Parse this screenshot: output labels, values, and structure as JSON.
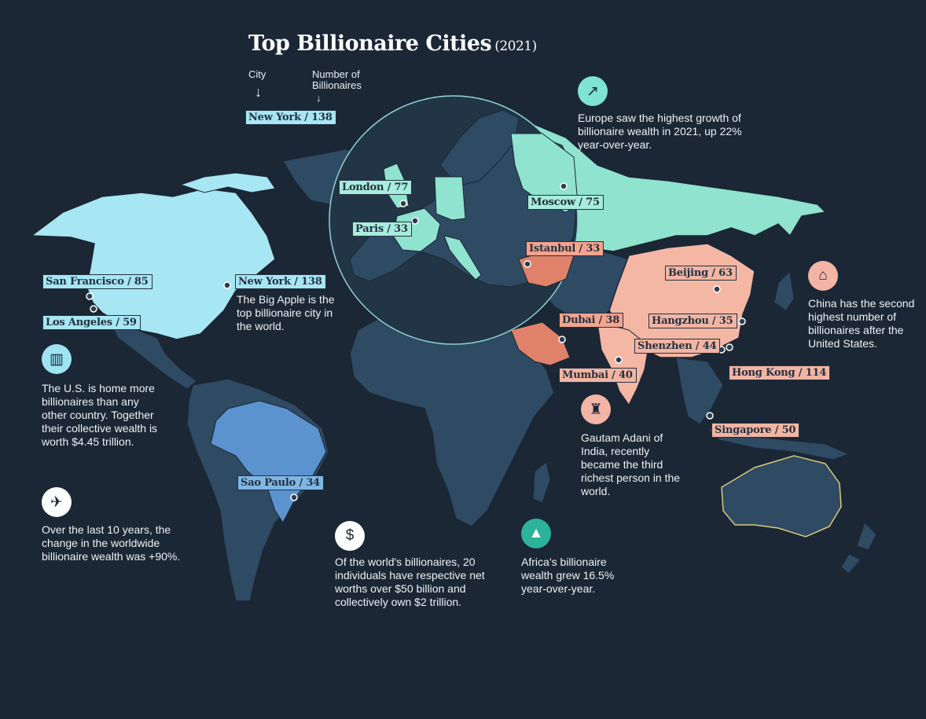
{
  "title": "Top Billionaire Cities",
  "title_year": "(2021)",
  "key": {
    "city_label": "City",
    "count_label": "Number of Billionaires",
    "example": "New York / 138"
  },
  "colors": {
    "background": "#1b2735",
    "land": "#2f4a63",
    "north_america": "#a7e6f3",
    "south_brazil": "#5b93cf",
    "europe_russia": "#8fe3cf",
    "china": "#f4b7a4",
    "turkey_saudi": "#e0826a"
  },
  "cities": [
    {
      "name": "San Francisco / 85",
      "color": "blue"
    },
    {
      "name": "New York / 138",
      "color": "blue"
    },
    {
      "name": "Los Angeles / 59",
      "color": "blue"
    },
    {
      "name": "London / 77",
      "color": "mint"
    },
    {
      "name": "Paris / 33",
      "color": "mint"
    },
    {
      "name": "Moscow / 75",
      "color": "mint"
    },
    {
      "name": "Istanbul / 33",
      "color": "orange"
    },
    {
      "name": "Beijing / 63",
      "color": "salmon"
    },
    {
      "name": "Dubai / 38",
      "color": "orange"
    },
    {
      "name": "Hangzhou / 35",
      "color": "salmon"
    },
    {
      "name": "Shenzhen / 44",
      "color": "salmon"
    },
    {
      "name": "Hong Kong / 114",
      "color": "salmon"
    },
    {
      "name": "Mumbai / 40",
      "color": "salmon"
    },
    {
      "name": "Singapore / 50",
      "color": "salmon"
    },
    {
      "name": "Sao Paulo / 34",
      "color": "sky"
    }
  ],
  "facts": {
    "nyc": "The Big Apple is the top billionaire city in the world.",
    "us": "The U.S. is home more billionaires than any other country. Together their collective wealth is worth $4.45 trillion.",
    "decade": "Over the last 10 years, the change in the worldwide billionaire wealth was +90%.",
    "europe": "Europe saw the highest growth of billionaire wealth in 2021, up 22% year-over-year.",
    "china": "China has the second highest number of billionaires after the United States.",
    "adani": "Gautam Adani of India, recently became the third richest person in the world.",
    "africa": "Africa’s billionaire wealth grew 16.5% year-over-year.",
    "fifty": "Of the world's billionaires, 20 individuals have respective net worths over $50 billion and collectively own $2 trillion."
  },
  "icons": {
    "europe": "growth-chart-icon",
    "china": "factory-icon",
    "us": "skyline-icon",
    "decade": "rocket-icon",
    "adani": "businessman-icon",
    "africa": "pyramid-icon",
    "fifty": "coins-icon"
  }
}
